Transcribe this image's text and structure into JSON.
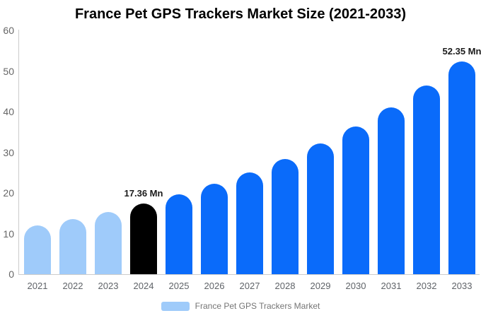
{
  "title": "France Pet GPS Trackers Market Size (2021-2033)",
  "legend": {
    "label": "France Pet GPS Trackers Market",
    "swatch_color": "#9fcbfa"
  },
  "colors": {
    "bar_light_blue": "#9fcbfa",
    "bar_blue": "#0a6bfa",
    "bar_black": "#000000",
    "axis_line": "#cccccc",
    "tick_text": "#666666",
    "value_label_text": "#1a1a1a",
    "title_text": "#000000",
    "legend_text": "#757575"
  },
  "chart_data": {
    "type": "bar",
    "title": "France Pet GPS Trackers Market Size (2021-2033)",
    "categories": [
      "2021",
      "2022",
      "2023",
      "2024",
      "2025",
      "2026",
      "2027",
      "2028",
      "2029",
      "2030",
      "2031",
      "2032",
      "2033"
    ],
    "values": [
      12.0,
      13.57,
      15.35,
      17.36,
      19.63,
      22.2,
      25.1,
      28.39,
      32.1,
      36.3,
      41.05,
      46.42,
      52.35
    ],
    "bar_colors": [
      "#9fcbfa",
      "#9fcbfa",
      "#9fcbfa",
      "#000000",
      "#0a6bfa",
      "#0a6bfa",
      "#0a6bfa",
      "#0a6bfa",
      "#0a6bfa",
      "#0a6bfa",
      "#0a6bfa",
      "#0a6bfa",
      "#0a6bfa"
    ],
    "value_labels": [
      null,
      null,
      null,
      "17.36 Mn",
      null,
      null,
      null,
      null,
      null,
      null,
      null,
      null,
      "52.35 Mn"
    ],
    "unit": "Mn",
    "xlabel": "",
    "ylabel": "",
    "ylim": [
      0,
      60
    ],
    "y_ticks": [
      0,
      10,
      20,
      30,
      40,
      50,
      60
    ],
    "grid": false,
    "legend_entries": [
      "France Pet GPS Trackers Market"
    ],
    "legend_position": "bottom"
  }
}
